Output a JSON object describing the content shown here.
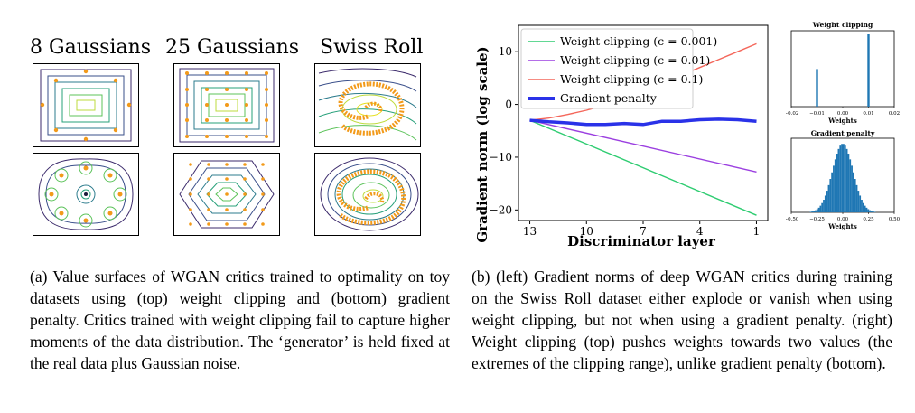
{
  "left_figure": {
    "columns": [
      "8 Gaussians",
      "25 Gaussians",
      "Swiss Roll"
    ]
  },
  "captions": {
    "left": "(a)  Value surfaces of WGAN critics trained to optimality on toy datasets using (top) weight clipping and (bottom) gradient penalty.  Critics trained with weight clipping fail to capture higher moments of the data distribution. The ‘generator’ is held fixed at the real data plus Gaussian noise.",
    "right": "(b)  (left) Gradient norms of deep WGAN critics during training on the Swiss Roll dataset either explode or vanish when using weight clipping, but not when using a gradient penalty. (right) Weight clipping (top) pushes weights towards two values (the extremes of the clipping range), unlike gradient penalty (bottom)."
  },
  "chart_data": [
    {
      "type": "line",
      "xlabel": "Discriminator layer",
      "ylabel": "Gradient norm (log scale)",
      "x_ticks": [
        13,
        10,
        7,
        4,
        1
      ],
      "y_ticks": [
        "10",
        "0",
        "−10",
        "−20"
      ],
      "xlim": [
        13.6,
        0.4
      ],
      "ylim": [
        -22,
        15
      ],
      "legend_position": "top-left",
      "series": [
        {
          "name": "Weight clipping (c = 0.001)",
          "color": "#2ecc71",
          "x": [
            13,
            1
          ],
          "y": [
            -3,
            -21
          ]
        },
        {
          "name": "Weight clipping (c = 0.01)",
          "color": "#9b3fe0",
          "x": [
            13,
            1
          ],
          "y": [
            -3,
            -12.8
          ]
        },
        {
          "name": "Weight clipping (c = 0.1)",
          "color": "#f4665a",
          "x": [
            13,
            12,
            11,
            10,
            9,
            8,
            7,
            6,
            5,
            4,
            3,
            2,
            1
          ],
          "y": [
            -3,
            -2.6,
            -1.9,
            -1.1,
            -0.1,
            1.1,
            2.5,
            4.0,
            5.5,
            7.0,
            8.5,
            10.0,
            11.5
          ]
        },
        {
          "name": "Gradient penalty",
          "color": "#2a32e8",
          "x": [
            13,
            12,
            11,
            10,
            9,
            8,
            7,
            6,
            5,
            4,
            3,
            2,
            1
          ],
          "y": [
            -3,
            -3.3,
            -3.5,
            -3.8,
            -3.8,
            -3.6,
            -3.8,
            -3.2,
            -3.2,
            -2.9,
            -2.8,
            -2.9,
            -3.2
          ]
        }
      ]
    },
    {
      "type": "bar",
      "title": "Weight clipping",
      "xlabel": "Weights",
      "x_ticks": [
        "−0.02",
        "−0.01",
        "0.00",
        "0.01",
        "0.02"
      ],
      "xlim": [
        -0.02,
        0.02
      ],
      "bins": [
        {
          "x": -0.01,
          "value": 0.52
        },
        {
          "x": 0.01,
          "value": 1.0
        }
      ],
      "color": "#1f77b4"
    },
    {
      "type": "bar",
      "title": "Gradient penalty",
      "xlabel": "Weights",
      "x_ticks": [
        "−0.50",
        "−0.25",
        "0.00",
        "0.25",
        "0.50"
      ],
      "xlim": [
        -0.5,
        0.5
      ],
      "distribution": "gaussian",
      "mean": 0.0,
      "std": 0.1,
      "color": "#1f77b4"
    }
  ]
}
